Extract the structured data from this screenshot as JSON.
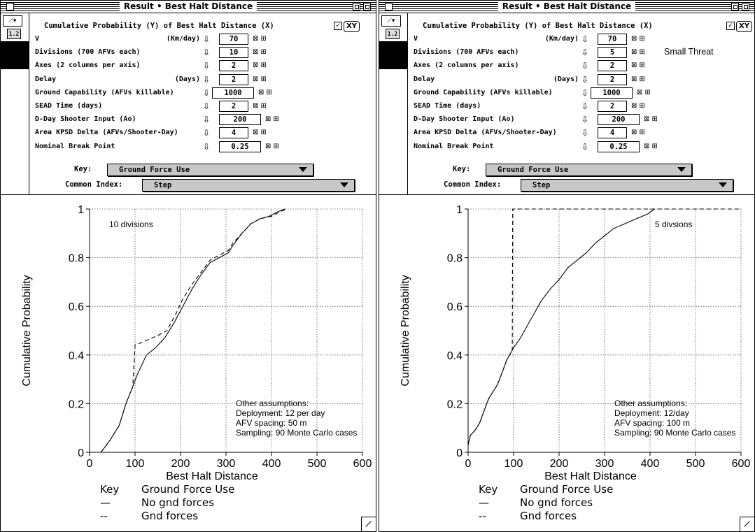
{
  "windows": [
    {
      "title": "Result • Best Halt Distance",
      "header": "Cumulative Probability (Y) of Best Halt Distance (X)",
      "xy_button": "XY",
      "rows": [
        {
          "label": "V",
          "unit": "(Km/day)",
          "value": "70"
        },
        {
          "label": "Divisions (700 AFVs each)",
          "unit": "",
          "value": "10"
        },
        {
          "label": "Axes (2 columns per axis)",
          "unit": "",
          "value": "2"
        },
        {
          "label": "Delay",
          "unit": "(Days)",
          "value": "2"
        },
        {
          "label": "Ground Capability (AFVs killable)",
          "unit": "",
          "value": "1000"
        },
        {
          "label": "SEAD Time (days)",
          "unit": "",
          "value": "2"
        },
        {
          "label": "D-Day Shooter Input (Ao)",
          "unit": "",
          "value": "200"
        },
        {
          "label": "Area KPSD Delta  (AFVs/Shooter-Day)",
          "unit": "",
          "value": "4"
        },
        {
          "label": "Nominal Break Point",
          "unit": "",
          "value": "0.25"
        }
      ],
      "extra_label": "",
      "key_label": "Key:",
      "key_value": "Ground Force Use",
      "index_label": "Common Index:",
      "index_value": "Step",
      "plot_annotation": "10 divisions",
      "assumptions": [
        "Other assumptions:",
        "Deployment: 12 per day",
        "AFV spacing: 50 m",
        "Sampling: 90 Monte Carlo cases"
      ],
      "legend": {
        "key": "Key",
        "title": "Ground Force Use",
        "items": [
          {
            "symbol": "—",
            "label": "No gnd forces"
          },
          {
            "symbol": "--",
            "label": "Gnd forces"
          }
        ]
      }
    },
    {
      "title": "Result • Best Halt Distance",
      "header": "Cumulative Probability (Y) of Best Halt Distance (X)",
      "xy_button": "XY",
      "rows": [
        {
          "label": "V",
          "unit": "(Km/day)",
          "value": "70"
        },
        {
          "label": "Divisions (700 AFVs each)",
          "unit": "",
          "value": "5"
        },
        {
          "label": "Axes (2 columns per axis)",
          "unit": "",
          "value": "2"
        },
        {
          "label": "Delay",
          "unit": "(Days)",
          "value": "2"
        },
        {
          "label": "Ground Capability (AFVs killable)",
          "unit": "",
          "value": "1000"
        },
        {
          "label": "SEAD Time (days)",
          "unit": "",
          "value": "2"
        },
        {
          "label": "D-Day Shooter Input (Ao)",
          "unit": "",
          "value": "200"
        },
        {
          "label": "Area KPSD Delta  (AFVs/Shooter-Day)",
          "unit": "",
          "value": "4"
        },
        {
          "label": "Nominal Break Point",
          "unit": "",
          "value": "0.25"
        }
      ],
      "extra_label": "Small Threat",
      "key_label": "Key:",
      "key_value": "Ground Force Use",
      "index_label": "Common Index:",
      "index_value": "Step",
      "plot_annotation": "5 divsions",
      "assumptions": [
        "Other assumptions:",
        "Deployment: 12/day",
        "AFV spacing: 100 m",
        "Sampling: 90 Monte Carlo cases"
      ],
      "legend": {
        "key": "Key",
        "title": "Ground Force Use",
        "items": [
          {
            "symbol": "—",
            "label": "No gnd forces"
          },
          {
            "symbol": "--",
            "label": "Gnd forces"
          }
        ]
      }
    }
  ],
  "chart_data": [
    {
      "type": "line",
      "title": "",
      "xlabel": "Best Halt Distance",
      "ylabel": "Cumulative Probability",
      "xlim": [
        0,
        600
      ],
      "ylim": [
        0,
        1
      ],
      "xticks": [
        0,
        100,
        200,
        300,
        400,
        500,
        600
      ],
      "yticks": [
        0,
        0.2,
        0.4,
        0.6,
        0.8,
        1
      ],
      "grid": true,
      "series": [
        {
          "name": "No gnd forces",
          "style": "solid",
          "x": [
            25,
            45,
            65,
            80,
            95,
            105,
            115,
            125,
            145,
            165,
            185,
            205,
            225,
            245,
            265,
            285,
            305,
            315,
            335,
            355,
            375,
            395,
            415,
            430
          ],
          "y": [
            0,
            0.05,
            0.11,
            0.2,
            0.27,
            0.32,
            0.36,
            0.4,
            0.43,
            0.47,
            0.53,
            0.6,
            0.67,
            0.73,
            0.78,
            0.8,
            0.82,
            0.85,
            0.9,
            0.94,
            0.96,
            0.97,
            0.99,
            1.0
          ]
        },
        {
          "name": "Gnd forces",
          "style": "dashed",
          "x": [
            25,
            45,
            65,
            80,
            95,
            100,
            125,
            150,
            170,
            190,
            205,
            225,
            245,
            265,
            285,
            305,
            315,
            335,
            355,
            375,
            400,
            420,
            435
          ],
          "y": [
            0,
            0.05,
            0.11,
            0.2,
            0.27,
            0.44,
            0.46,
            0.48,
            0.5,
            0.57,
            0.63,
            0.69,
            0.74,
            0.79,
            0.81,
            0.83,
            0.86,
            0.9,
            0.94,
            0.96,
            0.97,
            0.99,
            1.0
          ]
        }
      ]
    },
    {
      "type": "line",
      "title": "",
      "xlabel": "Best Halt Distance",
      "ylabel": "Cumulative Probability",
      "xlim": [
        0,
        600
      ],
      "ylim": [
        0,
        1
      ],
      "xticks": [
        0,
        100,
        200,
        300,
        400,
        500,
        600
      ],
      "yticks": [
        0,
        0.2,
        0.4,
        0.6,
        0.8,
        1
      ],
      "grid": true,
      "series": [
        {
          "name": "No gnd forces",
          "style": "solid",
          "x": [
            0,
            5,
            15,
            25,
            35,
            45,
            55,
            65,
            75,
            85,
            100,
            115,
            130,
            145,
            160,
            180,
            200,
            220,
            240,
            260,
            280,
            300,
            320,
            345,
            370,
            395,
            410
          ],
          "y": [
            0.03,
            0.07,
            0.09,
            0.12,
            0.17,
            0.22,
            0.25,
            0.28,
            0.33,
            0.38,
            0.43,
            0.47,
            0.52,
            0.57,
            0.62,
            0.67,
            0.71,
            0.76,
            0.79,
            0.82,
            0.86,
            0.89,
            0.92,
            0.94,
            0.96,
            0.98,
            1.0
          ]
        },
        {
          "name": "Gnd forces",
          "style": "dashed",
          "x": [
            0,
            5,
            15,
            25,
            35,
            45,
            55,
            65,
            75,
            85,
            97,
            98,
            200,
            300,
            400,
            500,
            600
          ],
          "y": [
            0.03,
            0.07,
            0.09,
            0.12,
            0.17,
            0.22,
            0.25,
            0.28,
            0.33,
            0.38,
            0.42,
            1.0,
            1.0,
            1.0,
            1.0,
            1.0,
            1.0
          ]
        }
      ]
    }
  ]
}
